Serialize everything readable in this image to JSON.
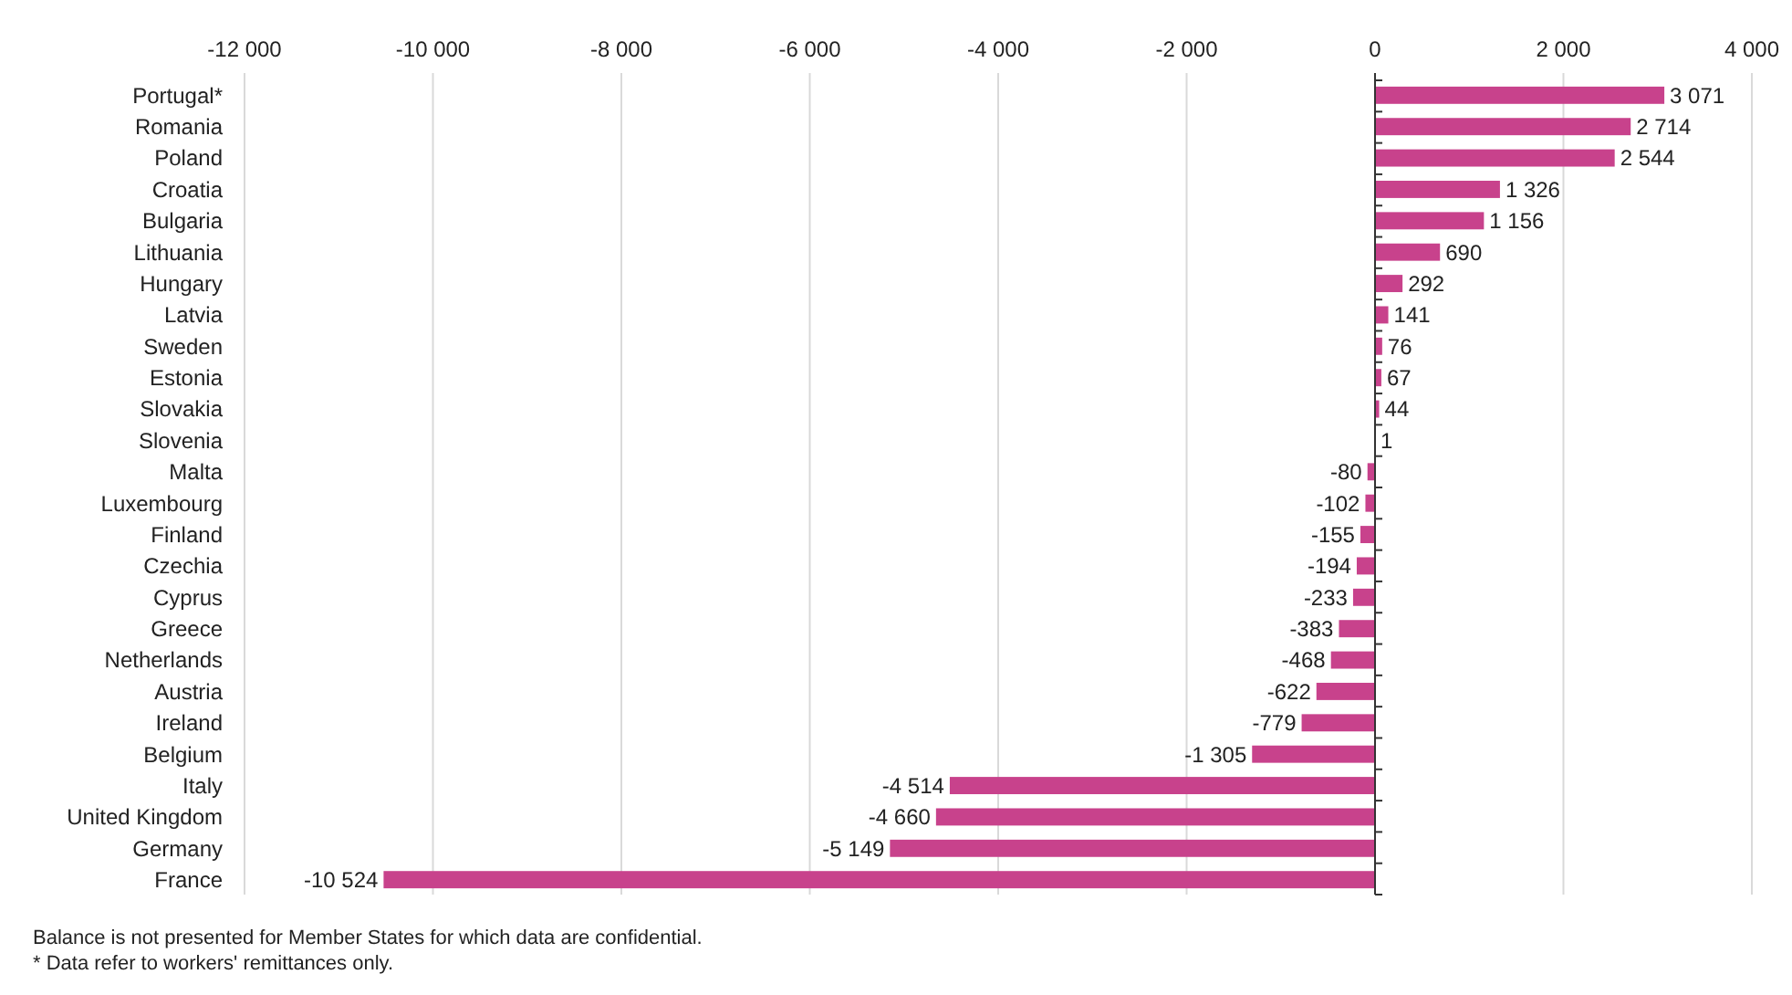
{
  "chart_data": {
    "type": "bar",
    "orientation": "horizontal",
    "categories": [
      "Portugal*",
      "Romania",
      "Poland",
      "Croatia",
      "Bulgaria",
      "Lithuania",
      "Hungary",
      "Latvia",
      "Sweden",
      "Estonia",
      "Slovakia",
      "Slovenia",
      "Malta",
      "Luxembourg",
      "Finland",
      "Czechia",
      "Cyprus",
      "Greece",
      "Netherlands",
      "Austria",
      "Ireland",
      "Belgium",
      "Italy",
      "United Kingdom",
      "Germany",
      "France"
    ],
    "values": [
      3071,
      2714,
      2544,
      1326,
      1156,
      690,
      292,
      141,
      76,
      67,
      44,
      1,
      -80,
      -102,
      -155,
      -194,
      -233,
      -383,
      -468,
      -622,
      -779,
      -1305,
      -4514,
      -4660,
      -5149,
      -10524
    ],
    "value_labels": [
      "3 071",
      "2 714",
      "2 544",
      "1 326",
      "1 156",
      "690",
      "292",
      "141",
      "76",
      "67",
      "44",
      "1",
      "-80",
      "-102",
      "-155",
      "-194",
      "-233",
      "-383",
      "-468",
      "-622",
      "-779",
      "-1 305",
      "-4 514",
      "-4 660",
      "-5 149",
      "-10 524"
    ],
    "color": "#c8428c",
    "xlim": [
      -12000,
      4000
    ],
    "xticks": [
      {
        "value": -12000,
        "label": "-12 000"
      },
      {
        "value": -10000,
        "label": "-10 000"
      },
      {
        "value": -8000,
        "label": "-8 000"
      },
      {
        "value": -6000,
        "label": "-6 000"
      },
      {
        "value": -4000,
        "label": "-4 000"
      },
      {
        "value": -2000,
        "label": "-2 000"
      },
      0,
      {
        "value": 2000,
        "label": "2 000"
      },
      {
        "value": 4000,
        "label": "4 000"
      }
    ],
    "grid": "x",
    "annotations": [
      "Balance is not presented for Member States for which data are confidential.",
      "* Data refer to workers' remittances only."
    ]
  }
}
